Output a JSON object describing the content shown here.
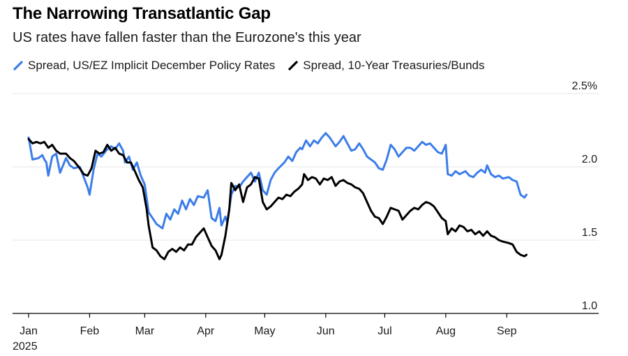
{
  "chart_data": {
    "type": "line",
    "title": "The Narrowing Transatlantic Gap",
    "subtitle": "US rates have fallen faster than the Eurozone's this year",
    "legend_placement": "top-left",
    "grid": true,
    "colors": {
      "us_ez_policy": "#3b7de9",
      "treasuries_bunds": "#000000",
      "grid": "#e6e6e6",
      "axis": "#000000"
    },
    "xlim": [
      "2025-01-01",
      "2025-10-03"
    ],
    "ylim": [
      1.0,
      2.5
    ],
    "yticks": [
      {
        "value": 2.5,
        "label": "2.5%"
      },
      {
        "value": 2.0,
        "label": "2.0"
      },
      {
        "value": 1.5,
        "label": "1.5"
      },
      {
        "value": 1.0,
        "label": "1.0"
      }
    ],
    "xticks": [
      {
        "date": "2025-01-01",
        "label": "Jan"
      },
      {
        "date": "2025-02-01",
        "label": "Feb"
      },
      {
        "date": "2025-03-01",
        "label": "Mar"
      },
      {
        "date": "2025-04-01",
        "label": "Apr"
      },
      {
        "date": "2025-05-01",
        "label": "May"
      },
      {
        "date": "2025-06-01",
        "label": "Jun"
      },
      {
        "date": "2025-07-01",
        "label": "Jul"
      },
      {
        "date": "2025-08-01",
        "label": "Aug"
      },
      {
        "date": "2025-09-01",
        "label": "Sep"
      }
    ],
    "year_label": "2025",
    "series": [
      {
        "name": "Spread, US/EZ Implicit December Policy Rates",
        "color_key": "us_ez_policy",
        "points": [
          [
            "2025-01-01",
            2.2
          ],
          [
            "2025-01-03",
            2.05
          ],
          [
            "2025-01-06",
            2.06
          ],
          [
            "2025-01-08",
            2.08
          ],
          [
            "2025-01-09",
            2.05
          ],
          [
            "2025-01-10",
            2.03
          ],
          [
            "2025-01-11",
            1.94
          ],
          [
            "2025-01-13",
            2.07
          ],
          [
            "2025-01-15",
            2.09
          ],
          [
            "2025-01-17",
            1.96
          ],
          [
            "2025-01-20",
            2.06
          ],
          [
            "2025-01-22",
            2.01
          ],
          [
            "2025-01-24",
            1.99
          ],
          [
            "2025-01-27",
            2.0
          ],
          [
            "2025-01-29",
            1.93
          ],
          [
            "2025-01-31",
            1.86
          ],
          [
            "2025-02-01",
            1.81
          ],
          [
            "2025-02-03",
            1.98
          ],
          [
            "2025-02-05",
            2.09
          ],
          [
            "2025-02-07",
            2.07
          ],
          [
            "2025-02-10",
            2.12
          ],
          [
            "2025-02-12",
            2.14
          ],
          [
            "2025-02-14",
            2.12
          ],
          [
            "2025-02-16",
            2.16
          ],
          [
            "2025-02-18",
            2.11
          ],
          [
            "2025-02-19",
            2.03
          ],
          [
            "2025-02-21",
            2.07
          ],
          [
            "2025-02-23",
            1.98
          ],
          [
            "2025-02-25",
            2.03
          ],
          [
            "2025-02-27",
            1.94
          ],
          [
            "2025-03-01",
            1.88
          ],
          [
            "2025-03-03",
            1.69
          ],
          [
            "2025-03-05",
            1.65
          ],
          [
            "2025-03-07",
            1.61
          ],
          [
            "2025-03-09",
            1.59
          ],
          [
            "2025-03-10",
            1.58
          ],
          [
            "2025-03-12",
            1.68
          ],
          [
            "2025-03-14",
            1.64
          ],
          [
            "2025-03-16",
            1.71
          ],
          [
            "2025-03-18",
            1.68
          ],
          [
            "2025-03-20",
            1.77
          ],
          [
            "2025-03-22",
            1.71
          ],
          [
            "2025-03-24",
            1.78
          ],
          [
            "2025-03-26",
            1.74
          ],
          [
            "2025-03-28",
            1.8
          ],
          [
            "2025-03-31",
            1.79
          ],
          [
            "2025-04-02",
            1.84
          ],
          [
            "2025-04-04",
            1.65
          ],
          [
            "2025-04-06",
            1.63
          ],
          [
            "2025-04-08",
            1.72
          ],
          [
            "2025-04-09",
            1.6
          ],
          [
            "2025-04-11",
            1.66
          ],
          [
            "2025-04-12",
            1.62
          ],
          [
            "2025-04-14",
            1.81
          ],
          [
            "2025-04-16",
            1.87
          ],
          [
            "2025-04-18",
            1.86
          ],
          [
            "2025-04-20",
            1.9
          ],
          [
            "2025-04-22",
            1.93
          ],
          [
            "2025-04-24",
            1.96
          ],
          [
            "2025-04-26",
            1.9
          ],
          [
            "2025-04-28",
            1.96
          ],
          [
            "2025-04-30",
            1.84
          ],
          [
            "2025-05-02",
            1.81
          ],
          [
            "2025-05-04",
            1.91
          ],
          [
            "2025-05-06",
            1.96
          ],
          [
            "2025-05-08",
            1.99
          ],
          [
            "2025-05-11",
            2.03
          ],
          [
            "2025-05-13",
            2.07
          ],
          [
            "2025-05-15",
            2.04
          ],
          [
            "2025-05-17",
            2.1
          ],
          [
            "2025-05-19",
            2.13
          ],
          [
            "2025-05-20",
            2.12
          ],
          [
            "2025-05-22",
            2.18
          ],
          [
            "2025-05-24",
            2.14
          ],
          [
            "2025-05-26",
            2.18
          ],
          [
            "2025-05-28",
            2.16
          ],
          [
            "2025-05-30",
            2.2
          ],
          [
            "2025-06-01",
            2.23
          ],
          [
            "2025-06-03",
            2.2
          ],
          [
            "2025-06-04",
            2.18
          ],
          [
            "2025-06-06",
            2.14
          ],
          [
            "2025-06-08",
            2.17
          ],
          [
            "2025-06-10",
            2.21
          ],
          [
            "2025-06-12",
            2.16
          ],
          [
            "2025-06-14",
            2.11
          ],
          [
            "2025-06-16",
            2.12
          ],
          [
            "2025-06-18",
            2.16
          ],
          [
            "2025-06-20",
            2.12
          ],
          [
            "2025-06-22",
            2.07
          ],
          [
            "2025-06-24",
            2.05
          ],
          [
            "2025-06-26",
            2.03
          ],
          [
            "2025-06-28",
            1.99
          ],
          [
            "2025-06-30",
            1.98
          ],
          [
            "2025-07-02",
            2.05
          ],
          [
            "2025-07-04",
            2.15
          ],
          [
            "2025-07-06",
            2.12
          ],
          [
            "2025-07-08",
            2.07
          ],
          [
            "2025-07-10",
            2.1
          ],
          [
            "2025-07-12",
            2.13
          ],
          [
            "2025-07-14",
            2.13
          ],
          [
            "2025-07-16",
            2.11
          ],
          [
            "2025-07-18",
            2.14
          ],
          [
            "2025-07-20",
            2.17
          ],
          [
            "2025-07-22",
            2.15
          ],
          [
            "2025-07-24",
            2.16
          ],
          [
            "2025-07-26",
            2.13
          ],
          [
            "2025-07-28",
            2.1
          ],
          [
            "2025-07-30",
            2.09
          ],
          [
            "2025-08-01",
            2.15
          ],
          [
            "2025-08-02",
            1.95
          ],
          [
            "2025-08-04",
            1.94
          ],
          [
            "2025-08-06",
            1.97
          ],
          [
            "2025-08-08",
            1.95
          ],
          [
            "2025-08-11",
            1.97
          ],
          [
            "2025-08-13",
            1.94
          ],
          [
            "2025-08-15",
            1.93
          ],
          [
            "2025-08-17",
            1.96
          ],
          [
            "2025-08-19",
            1.98
          ],
          [
            "2025-08-21",
            1.96
          ],
          [
            "2025-08-22",
            2.01
          ],
          [
            "2025-08-24",
            1.95
          ],
          [
            "2025-08-26",
            1.93
          ],
          [
            "2025-08-28",
            1.94
          ],
          [
            "2025-08-30",
            1.92
          ],
          [
            "2025-09-02",
            1.93
          ],
          [
            "2025-09-04",
            1.91
          ],
          [
            "2025-09-06",
            1.9
          ],
          [
            "2025-09-08",
            1.81
          ],
          [
            "2025-09-10",
            1.79
          ],
          [
            "2025-09-11",
            1.81
          ]
        ]
      },
      {
        "name": "Spread, 10-Year Treasuries/Bunds",
        "color_key": "treasuries_bunds",
        "points": [
          [
            "2025-01-01",
            2.19
          ],
          [
            "2025-01-03",
            2.16
          ],
          [
            "2025-01-05",
            2.17
          ],
          [
            "2025-01-07",
            2.16
          ],
          [
            "2025-01-09",
            2.17
          ],
          [
            "2025-01-11",
            2.13
          ],
          [
            "2025-01-13",
            2.15
          ],
          [
            "2025-01-15",
            2.11
          ],
          [
            "2025-01-17",
            2.09
          ],
          [
            "2025-01-20",
            2.09
          ],
          [
            "2025-01-22",
            2.06
          ],
          [
            "2025-01-24",
            2.04
          ],
          [
            "2025-01-27",
            1.99
          ],
          [
            "2025-01-29",
            1.95
          ],
          [
            "2025-01-31",
            1.94
          ],
          [
            "2025-02-02",
            1.99
          ],
          [
            "2025-02-04",
            2.11
          ],
          [
            "2025-02-06",
            2.09
          ],
          [
            "2025-02-08",
            2.1
          ],
          [
            "2025-02-10",
            2.15
          ],
          [
            "2025-02-12",
            2.11
          ],
          [
            "2025-02-14",
            2.13
          ],
          [
            "2025-02-16",
            2.09
          ],
          [
            "2025-02-18",
            2.08
          ],
          [
            "2025-02-20",
            2.03
          ],
          [
            "2025-02-22",
            2.03
          ],
          [
            "2025-02-24",
            1.97
          ],
          [
            "2025-02-26",
            1.91
          ],
          [
            "2025-02-28",
            1.86
          ],
          [
            "2025-03-02",
            1.71
          ],
          [
            "2025-03-03",
            1.6
          ],
          [
            "2025-03-05",
            1.45
          ],
          [
            "2025-03-07",
            1.43
          ],
          [
            "2025-03-09",
            1.39
          ],
          [
            "2025-03-11",
            1.37
          ],
          [
            "2025-03-13",
            1.42
          ],
          [
            "2025-03-15",
            1.44
          ],
          [
            "2025-03-17",
            1.42
          ],
          [
            "2025-03-19",
            1.45
          ],
          [
            "2025-03-21",
            1.43
          ],
          [
            "2025-03-23",
            1.47
          ],
          [
            "2025-03-25",
            1.47
          ],
          [
            "2025-03-27",
            1.52
          ],
          [
            "2025-03-29",
            1.55
          ],
          [
            "2025-03-31",
            1.58
          ],
          [
            "2025-04-02",
            1.52
          ],
          [
            "2025-04-04",
            1.46
          ],
          [
            "2025-04-06",
            1.43
          ],
          [
            "2025-04-08",
            1.37
          ],
          [
            "2025-04-09",
            1.4
          ],
          [
            "2025-04-11",
            1.53
          ],
          [
            "2025-04-13",
            1.71
          ],
          [
            "2025-04-14",
            1.89
          ],
          [
            "2025-04-16",
            1.84
          ],
          [
            "2025-04-18",
            1.88
          ],
          [
            "2025-04-20",
            1.76
          ],
          [
            "2025-04-22",
            1.86
          ],
          [
            "2025-04-24",
            1.88
          ],
          [
            "2025-04-26",
            1.93
          ],
          [
            "2025-04-28",
            1.92
          ],
          [
            "2025-04-30",
            1.76
          ],
          [
            "2025-05-02",
            1.71
          ],
          [
            "2025-05-04",
            1.73
          ],
          [
            "2025-05-06",
            1.76
          ],
          [
            "2025-05-08",
            1.79
          ],
          [
            "2025-05-10",
            1.78
          ],
          [
            "2025-05-12",
            1.81
          ],
          [
            "2025-05-14",
            1.8
          ],
          [
            "2025-05-16",
            1.83
          ],
          [
            "2025-05-18",
            1.85
          ],
          [
            "2025-05-20",
            1.88
          ],
          [
            "2025-05-21",
            1.95
          ],
          [
            "2025-05-23",
            1.91
          ],
          [
            "2025-05-25",
            1.93
          ],
          [
            "2025-05-27",
            1.92
          ],
          [
            "2025-05-29",
            1.88
          ],
          [
            "2025-05-31",
            1.92
          ],
          [
            "2025-06-02",
            1.91
          ],
          [
            "2025-06-04",
            1.93
          ],
          [
            "2025-06-06",
            1.87
          ],
          [
            "2025-06-08",
            1.9
          ],
          [
            "2025-06-10",
            1.91
          ],
          [
            "2025-06-12",
            1.89
          ],
          [
            "2025-06-14",
            1.88
          ],
          [
            "2025-06-16",
            1.86
          ],
          [
            "2025-06-18",
            1.85
          ],
          [
            "2025-06-20",
            1.82
          ],
          [
            "2025-06-22",
            1.76
          ],
          [
            "2025-06-24",
            1.7
          ],
          [
            "2025-06-26",
            1.66
          ],
          [
            "2025-06-28",
            1.65
          ],
          [
            "2025-06-30",
            1.61
          ],
          [
            "2025-07-02",
            1.66
          ],
          [
            "2025-07-04",
            1.72
          ],
          [
            "2025-07-06",
            1.71
          ],
          [
            "2025-07-08",
            1.7
          ],
          [
            "2025-07-10",
            1.64
          ],
          [
            "2025-07-12",
            1.67
          ],
          [
            "2025-07-14",
            1.7
          ],
          [
            "2025-07-16",
            1.72
          ],
          [
            "2025-07-18",
            1.71
          ],
          [
            "2025-07-20",
            1.74
          ],
          [
            "2025-07-22",
            1.76
          ],
          [
            "2025-07-24",
            1.75
          ],
          [
            "2025-07-26",
            1.73
          ],
          [
            "2025-07-28",
            1.69
          ],
          [
            "2025-07-30",
            1.65
          ],
          [
            "2025-08-01",
            1.63
          ],
          [
            "2025-08-02",
            1.54
          ],
          [
            "2025-08-04",
            1.58
          ],
          [
            "2025-08-06",
            1.56
          ],
          [
            "2025-08-08",
            1.6
          ],
          [
            "2025-08-10",
            1.59
          ],
          [
            "2025-08-12",
            1.56
          ],
          [
            "2025-08-14",
            1.57
          ],
          [
            "2025-08-16",
            1.54
          ],
          [
            "2025-08-18",
            1.56
          ],
          [
            "2025-08-20",
            1.53
          ],
          [
            "2025-08-22",
            1.56
          ],
          [
            "2025-08-24",
            1.53
          ],
          [
            "2025-08-26",
            1.52
          ],
          [
            "2025-08-28",
            1.5
          ],
          [
            "2025-08-30",
            1.49
          ],
          [
            "2025-09-02",
            1.48
          ],
          [
            "2025-09-04",
            1.47
          ],
          [
            "2025-09-06",
            1.42
          ],
          [
            "2025-09-08",
            1.4
          ],
          [
            "2025-09-10",
            1.39
          ],
          [
            "2025-09-11",
            1.4
          ]
        ]
      }
    ]
  }
}
